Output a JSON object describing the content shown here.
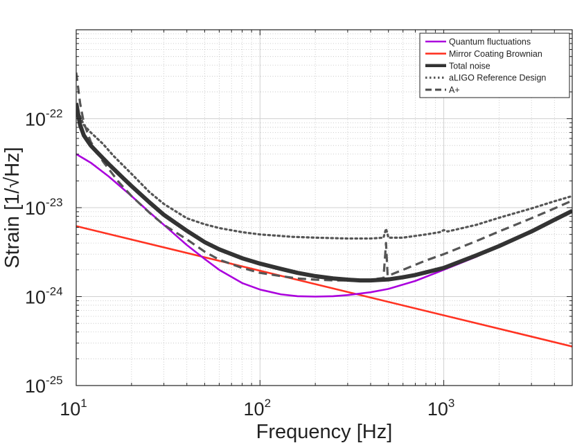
{
  "chart_data": {
    "type": "line",
    "xlabel": "Frequency [Hz]",
    "ylabel": "Strain [1/√Hz]",
    "xscale": "log",
    "yscale": "log",
    "xlim": [
      10,
      5000
    ],
    "ylim": [
      1e-25,
      1e-21
    ],
    "grid": true,
    "legend_position": "top-right",
    "x_ticks": [
      {
        "value": 10,
        "base": "10",
        "exp": "1"
      },
      {
        "value": 100,
        "base": "10",
        "exp": "2"
      },
      {
        "value": 1000,
        "base": "10",
        "exp": "3"
      }
    ],
    "y_ticks": [
      {
        "value": 1e-25,
        "base": "10",
        "exp": "-25"
      },
      {
        "value": 1e-24,
        "base": "10",
        "exp": "-24"
      },
      {
        "value": 1e-23,
        "base": "10",
        "exp": "-23"
      },
      {
        "value": 1e-22,
        "base": "10",
        "exp": "-22"
      }
    ],
    "series": [
      {
        "name": "Quantum fluctuations",
        "color": "#aa00dd",
        "style": "solid",
        "x": [
          10,
          12,
          15,
          20,
          25,
          30,
          40,
          50,
          60,
          80,
          100,
          130,
          160,
          200,
          250,
          300,
          400,
          500,
          700,
          1000,
          1500,
          2000,
          3000,
          4000,
          5000
        ],
        "y": [
          4e-23,
          3.2e-23,
          2.25e-23,
          1.35e-23,
          8.9e-24,
          6.4e-24,
          3.8e-24,
          2.65e-24,
          2e-24,
          1.42e-24,
          1.2e-24,
          1.06e-24,
          1.01e-24,
          1e-24,
          1.01e-24,
          1.04e-24,
          1.12e-24,
          1.22e-24,
          1.5e-24,
          2e-24,
          2.8e-24,
          3.7e-24,
          5.4e-24,
          7.2e-24,
          9e-24
        ]
      },
      {
        "name": "Mirror Coating Brownian",
        "color": "#ff3322",
        "style": "solid",
        "x": [
          10,
          5000
        ],
        "y": [
          6.2e-24,
          2.75e-25
        ]
      },
      {
        "name": "Total noise",
        "color": "#333333",
        "style": "solid-thick",
        "x": [
          10,
          10.5,
          11,
          12,
          13,
          15,
          18,
          20,
          25,
          30,
          40,
          50,
          60,
          80,
          100,
          130,
          160,
          200,
          250,
          300,
          350,
          400,
          500,
          600,
          700,
          1000,
          1500,
          2000,
          3000,
          4000,
          5000
        ],
        "y": [
          1.5e-22,
          8.5e-23,
          6.5e-23,
          5e-23,
          4.2e-23,
          3.1e-23,
          2.15e-23,
          1.75e-23,
          1.15e-23,
          8.3e-24,
          5.5e-24,
          4.1e-24,
          3.4e-24,
          2.7e-24,
          2.35e-24,
          2.05e-24,
          1.85e-24,
          1.7e-24,
          1.6e-24,
          1.55e-24,
          1.52e-24,
          1.52e-24,
          1.56e-24,
          1.65e-24,
          1.75e-24,
          2.1e-24,
          2.9e-24,
          3.7e-24,
          5.4e-24,
          7.3e-24,
          9.2e-24
        ]
      },
      {
        "name": "aLIGO Reference Design",
        "color": "#555555",
        "style": "dotted",
        "x": [
          10,
          11,
          12,
          14,
          16,
          20,
          25,
          30,
          40,
          50,
          60,
          80,
          100,
          150,
          200,
          300,
          400,
          470,
          485,
          500,
          600,
          800,
          950,
          1000,
          1050,
          1500,
          2000,
          3000,
          4000,
          5000
        ],
        "y": [
          1.35e-22,
          8.5e-23,
          7e-23,
          5.2e-23,
          3.8e-23,
          2.4e-23,
          1.5e-23,
          1.1e-23,
          7.6e-24,
          6.5e-24,
          5.9e-24,
          5.3e-24,
          5e-24,
          4.7e-24,
          4.6e-24,
          4.5e-24,
          4.5e-24,
          4.6e-24,
          5.8e-24,
          4.6e-24,
          4.6e-24,
          5e-24,
          5.3e-24,
          5.6e-24,
          5.4e-24,
          6.4e-24,
          7.7e-24,
          9.8e-24,
          1.18e-23,
          1.35e-23
        ]
      },
      {
        "name": "A+",
        "color": "#555555",
        "style": "dashed",
        "x": [
          10,
          10.5,
          11,
          12,
          14,
          17,
          20,
          25,
          30,
          40,
          50,
          60,
          80,
          100,
          130,
          160,
          200,
          250,
          300,
          400,
          470,
          485,
          495,
          500,
          600,
          800,
          1000,
          1500,
          2000,
          3000,
          4000,
          5000
        ],
        "y": [
          3.3e-22,
          1.5e-22,
          9e-23,
          5.5e-23,
          3.3e-23,
          1.95e-23,
          1.35e-23,
          8.8e-24,
          6.4e-24,
          4.4e-24,
          3.2e-24,
          2.6e-24,
          2.1e-24,
          1.85e-24,
          1.7e-24,
          1.6e-24,
          1.55e-24,
          1.52e-24,
          1.52e-24,
          1.55e-24,
          1.62e-24,
          4e-24,
          1.7e-24,
          1.72e-24,
          2e-24,
          2.55e-24,
          3e-24,
          4.2e-24,
          5.4e-24,
          7.6e-24,
          9.8e-24,
          1.2e-23
        ]
      }
    ]
  }
}
